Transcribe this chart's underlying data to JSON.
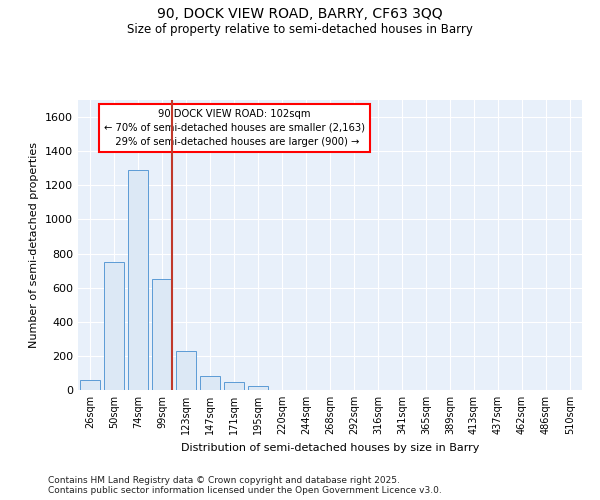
{
  "title1": "90, DOCK VIEW ROAD, BARRY, CF63 3QQ",
  "title2": "Size of property relative to semi-detached houses in Barry",
  "xlabel": "Distribution of semi-detached houses by size in Barry",
  "ylabel": "Number of semi-detached properties",
  "categories": [
    "26sqm",
    "50sqm",
    "74sqm",
    "99sqm",
    "123sqm",
    "147sqm",
    "171sqm",
    "195sqm",
    "220sqm",
    "244sqm",
    "268sqm",
    "292sqm",
    "316sqm",
    "341sqm",
    "365sqm",
    "389sqm",
    "413sqm",
    "437sqm",
    "462sqm",
    "486sqm",
    "510sqm"
  ],
  "values": [
    60,
    750,
    1290,
    650,
    230,
    80,
    45,
    25,
    0,
    0,
    0,
    0,
    0,
    0,
    0,
    0,
    0,
    0,
    0,
    0,
    0
  ],
  "bar_color": "#dce8f5",
  "bar_edge_color": "#5b9bd5",
  "vline_color": "#c0392b",
  "annotation_box_text": "90 DOCK VIEW ROAD: 102sqm\n← 70% of semi-detached houses are smaller (2,163)\n  29% of semi-detached houses are larger (900) →",
  "ylim": [
    0,
    1700
  ],
  "yticks": [
    0,
    200,
    400,
    600,
    800,
    1000,
    1200,
    1400,
    1600
  ],
  "bg_color": "#e8f0fa",
  "footer1": "Contains HM Land Registry data © Crown copyright and database right 2025.",
  "footer2": "Contains public sector information licensed under the Open Government Licence v3.0."
}
